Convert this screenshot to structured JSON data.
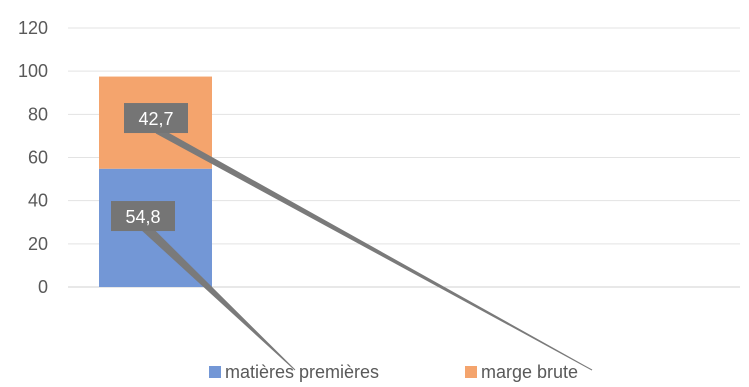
{
  "chart_data": {
    "type": "bar",
    "stacked": true,
    "categories": [
      ""
    ],
    "series": [
      {
        "name": "matières premières",
        "values": [
          54.8
        ],
        "color": "#7397D6",
        "data_label": "54,8"
      },
      {
        "name": "marge brute",
        "values": [
          42.7
        ],
        "color": "#F4A46D",
        "data_label": "42,7"
      }
    ],
    "y_ticks": [
      "0",
      "20",
      "40",
      "60",
      "80",
      "100",
      "120"
    ],
    "ylim": [
      0,
      120
    ],
    "title": "",
    "xlabel": "",
    "ylabel": "",
    "grid": true,
    "legend_position": "bottom",
    "colors": {
      "grid": "#E3E3E3",
      "axis": "#D0D0D0",
      "label_box": "#757575",
      "leader_line": "#7A7A7A",
      "tick_text": "#595959"
    }
  }
}
